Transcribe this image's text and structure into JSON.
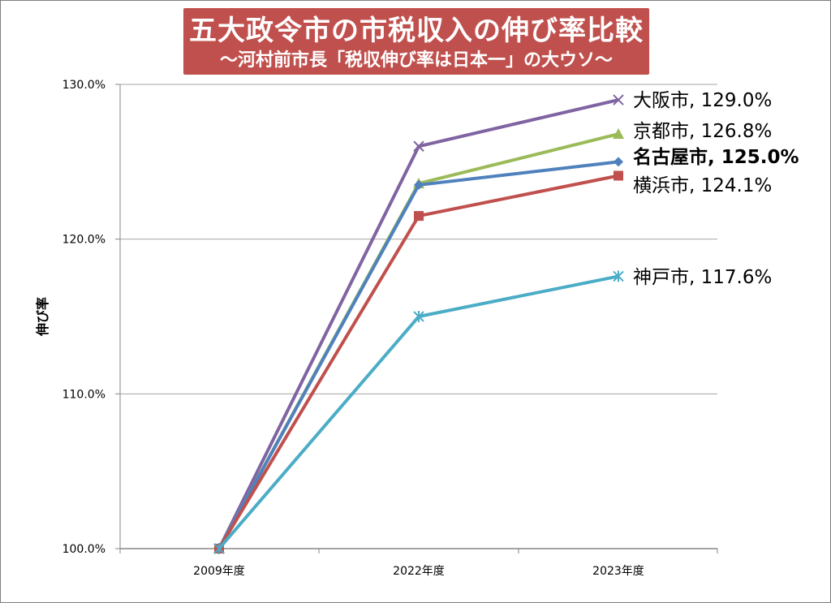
{
  "title": "五大政令市の市税収入の伸び率比較",
  "subtitle": "～河村前市長「税収伸び率は日本一」の大ウソ～",
  "colors": {
    "title_bg": "#c0504d",
    "grid": "#a6a6a6",
    "axis": "#868686"
  },
  "chart_data": {
    "type": "line",
    "title": "五大政令市の市税収入の伸び率比較",
    "subtitle": "～河村前市長「税収伸び率は日本一」の大ウソ～",
    "xlabel": "",
    "ylabel": "伸び率",
    "categories": [
      "2009年度",
      "2022年度",
      "2023年度"
    ],
    "ylim": [
      100,
      130
    ],
    "yticks": [
      100,
      110,
      120,
      130
    ],
    "ytick_labels": [
      "100.0%",
      "110.0%",
      "120.0%",
      "130.0%"
    ],
    "grid": "horizontal",
    "series": [
      {
        "name": "大阪市",
        "values": [
          100,
          126.0,
          129.0
        ],
        "end_label": "129.0%",
        "color": "#8064a2",
        "marker": "x",
        "bold": false
      },
      {
        "name": "京都市",
        "values": [
          100,
          123.6,
          126.8
        ],
        "end_label": "126.8%",
        "color": "#9bbb59",
        "marker": "triangle",
        "bold": false
      },
      {
        "name": "名古屋市",
        "values": [
          100,
          123.5,
          125.0
        ],
        "end_label": "125.0%",
        "color": "#4f81bd",
        "marker": "diamond",
        "bold": true
      },
      {
        "name": "横浜市",
        "values": [
          100,
          121.5,
          124.1
        ],
        "end_label": "124.1%",
        "color": "#c0504d",
        "marker": "square",
        "bold": false
      },
      {
        "name": "神戸市",
        "values": [
          100,
          115.0,
          117.6
        ],
        "end_label": "117.6%",
        "color": "#4bacc6",
        "marker": "star",
        "bold": false
      }
    ]
  }
}
